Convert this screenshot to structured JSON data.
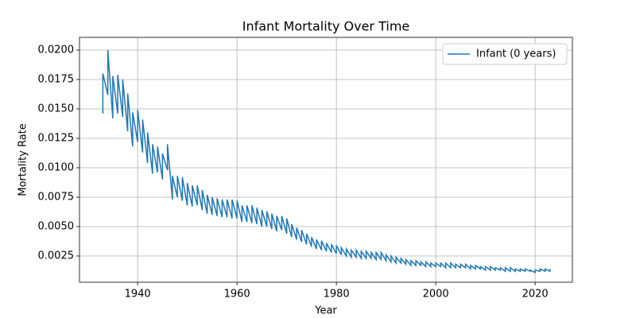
{
  "chart_data": {
    "type": "line",
    "title": "Infant Mortality Over Time",
    "xlabel": "Year",
    "ylabel": "Mortality Rate",
    "x": [
      1933,
      1933,
      1934,
      1934,
      1935,
      1935,
      1936,
      1936,
      1937,
      1937,
      1938,
      1938,
      1939,
      1939,
      1940,
      1940,
      1941,
      1941,
      1942,
      1942,
      1943,
      1943,
      1944,
      1944,
      1945,
      1945,
      1946,
      1946,
      1947,
      1947,
      1948,
      1948,
      1949,
      1949,
      1950,
      1950,
      1951,
      1951,
      1952,
      1952,
      1953,
      1953,
      1954,
      1954,
      1955,
      1955,
      1956,
      1956,
      1957,
      1957,
      1958,
      1958,
      1959,
      1959,
      1960,
      1960,
      1961,
      1961,
      1962,
      1962,
      1963,
      1963,
      1964,
      1964,
      1965,
      1965,
      1966,
      1966,
      1967,
      1967,
      1968,
      1968,
      1969,
      1969,
      1970,
      1970,
      1971,
      1971,
      1972,
      1972,
      1973,
      1973,
      1974,
      1974,
      1975,
      1975,
      1976,
      1976,
      1977,
      1977,
      1978,
      1978,
      1979,
      1979,
      1980,
      1980,
      1981,
      1981,
      1982,
      1982,
      1983,
      1983,
      1984,
      1984,
      1985,
      1985,
      1986,
      1986,
      1987,
      1987,
      1988,
      1988,
      1989,
      1989,
      1990,
      1990,
      1991,
      1991,
      1992,
      1992,
      1993,
      1993,
      1994,
      1994,
      1995,
      1995,
      1996,
      1996,
      1997,
      1997,
      1998,
      1998,
      1999,
      1999,
      2000,
      2000,
      2001,
      2001,
      2002,
      2002,
      2003,
      2003,
      2004,
      2004,
      2005,
      2005,
      2006,
      2006,
      2007,
      2007,
      2008,
      2008,
      2009,
      2009,
      2010,
      2010,
      2011,
      2011,
      2012,
      2012,
      2013,
      2013,
      2014,
      2014,
      2015,
      2015,
      2016,
      2016,
      2017,
      2017,
      2018,
      2018,
      2019,
      2019,
      2020,
      2020,
      2021,
      2021,
      2022,
      2022,
      2023,
      2023
    ],
    "series": [
      {
        "name": "Infant (0 years)",
        "color": "#1f77b4",
        "values": [
          0.0146,
          0.018,
          0.0162,
          0.02,
          0.0142,
          0.0178,
          0.0146,
          0.0179,
          0.0143,
          0.0175,
          0.0131,
          0.0163,
          0.0118,
          0.0147,
          0.0122,
          0.0149,
          0.0113,
          0.0141,
          0.0104,
          0.013,
          0.0095,
          0.012,
          0.0096,
          0.0118,
          0.009,
          0.0112,
          0.0098,
          0.012,
          0.0073,
          0.0093,
          0.0075,
          0.0093,
          0.0072,
          0.0092,
          0.0068,
          0.0087,
          0.0067,
          0.0085,
          0.0068,
          0.0085,
          0.0064,
          0.0081,
          0.0061,
          0.0077,
          0.006,
          0.0075,
          0.0059,
          0.0074,
          0.0058,
          0.0073,
          0.0058,
          0.0073,
          0.0057,
          0.0073,
          0.0057,
          0.0072,
          0.0054,
          0.0068,
          0.0054,
          0.0068,
          0.0053,
          0.0068,
          0.0052,
          0.0066,
          0.005,
          0.0064,
          0.005,
          0.0063,
          0.0048,
          0.0061,
          0.0046,
          0.0059,
          0.0047,
          0.0059,
          0.0044,
          0.0057,
          0.0041,
          0.0052,
          0.0039,
          0.0049,
          0.0037,
          0.0047,
          0.0035,
          0.0044,
          0.0033,
          0.0041,
          0.0031,
          0.0039,
          0.003,
          0.0038,
          0.0029,
          0.0036,
          0.0028,
          0.0035,
          0.0027,
          0.0034,
          0.0026,
          0.0032,
          0.0025,
          0.0031,
          0.0024,
          0.003,
          0.0024,
          0.003,
          0.0023,
          0.0029,
          0.0023,
          0.0029,
          0.0023,
          0.0028,
          0.0022,
          0.0028,
          0.0022,
          0.0028,
          0.0021,
          0.0026,
          0.002,
          0.0025,
          0.0019,
          0.0024,
          0.0019,
          0.0023,
          0.0018,
          0.0022,
          0.0017,
          0.0021,
          0.0017,
          0.0021,
          0.0017,
          0.002,
          0.0016,
          0.002,
          0.0016,
          0.0019,
          0.0016,
          0.0019,
          0.0016,
          0.0019,
          0.0015,
          0.0019,
          0.0015,
          0.0019,
          0.0015,
          0.0018,
          0.0015,
          0.0018,
          0.0015,
          0.0018,
          0.0014,
          0.0017,
          0.0014,
          0.0017,
          0.0014,
          0.0016,
          0.0013,
          0.0016,
          0.0013,
          0.0016,
          0.0013,
          0.0015,
          0.0013,
          0.0015,
          0.0012,
          0.0015,
          0.0012,
          0.0015,
          0.0012,
          0.0014,
          0.0012,
          0.0014,
          0.0012,
          0.0014,
          0.0012,
          0.0013,
          0.0011,
          0.0013,
          0.0012,
          0.0014,
          0.0012,
          0.0014,
          0.0012,
          0.0014
        ]
      }
    ],
    "xlim": [
      1928.3,
      2027.5
    ],
    "ylim": [
      0.00027,
      0.02108
    ],
    "xticks": [
      1940,
      1960,
      1980,
      2000,
      2020
    ],
    "yticks": [
      0.0025,
      {
        "value": 0.005,
        "label": "0.0050"
      },
      0.0075,
      {
        "value": 0.01,
        "label": "0.0100"
      },
      0.0125,
      {
        "value": 0.015,
        "label": "0.0150"
      },
      0.0175,
      {
        "value": 0.02,
        "label": "0.0200"
      }
    ],
    "grid": true,
    "legend": "upper right"
  }
}
